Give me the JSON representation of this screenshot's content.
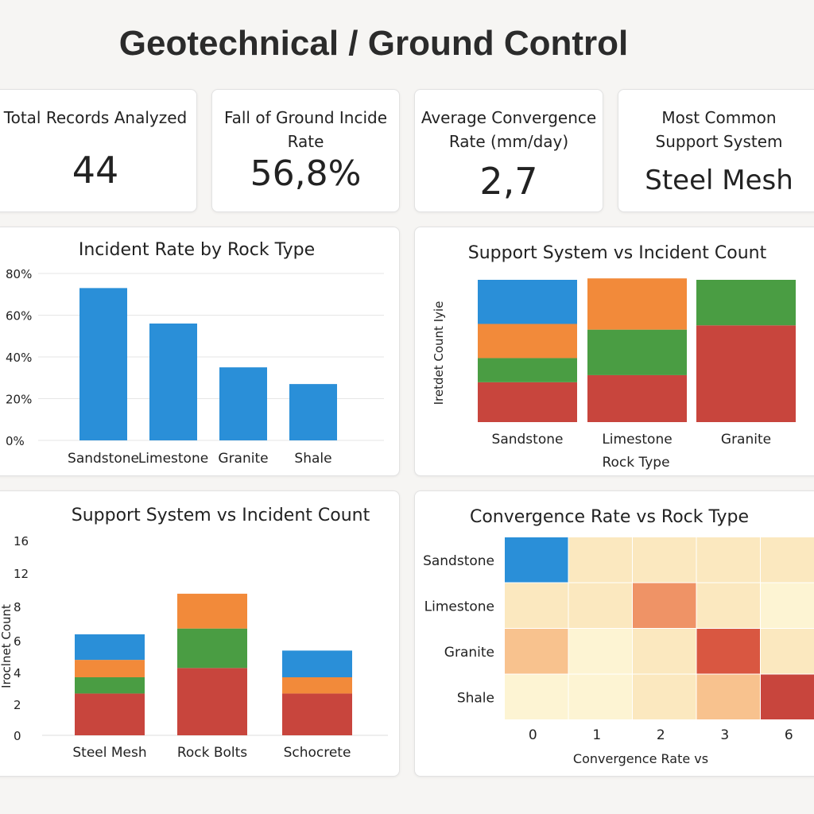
{
  "page": {
    "title": "Geotechnical / Ground Control"
  },
  "kpis": [
    {
      "label": "Total Records Analyzed",
      "value": "44"
    },
    {
      "label": "Fall of Ground Incide Rate",
      "value": "56,8%"
    },
    {
      "label": "Average Convergence Rate (mm/day)",
      "value": "2,7"
    },
    {
      "label": "Most Common Support System",
      "value": "Steel Mesh"
    }
  ],
  "colors": {
    "blue": "#2a8fd8",
    "orange": "#f28a3a",
    "green": "#4a9d43",
    "red": "#c8453d"
  },
  "chart_data": [
    {
      "type": "bar",
      "title": "Incident Rate by Rock Type",
      "categories": [
        "Sandstone",
        "Limestone",
        "Granite",
        "Shale"
      ],
      "values": [
        73,
        56,
        35,
        27
      ],
      "ylim": [
        0,
        80
      ],
      "yticks": [
        "0%",
        "20%",
        "40%",
        "60%",
        "80%"
      ],
      "grid": true
    },
    {
      "type": "bar",
      "stacked": true,
      "title": "Support System vs Incident Count",
      "xlabel": "Rock Type",
      "ylabel": "Iretdet Count Iyie",
      "categories": [
        "Sandstone",
        "Limestone",
        "Granite"
      ],
      "series": [
        {
          "color": "#c8453d",
          "values": [
            28,
            33,
            68
          ]
        },
        {
          "color": "#4a9d43",
          "values": [
            17,
            32,
            32
          ]
        },
        {
          "color": "#f28a3a",
          "values": [
            24,
            36,
            0
          ]
        },
        {
          "color": "#2a8fd8",
          "values": [
            31,
            0,
            0
          ]
        }
      ],
      "ylim": [
        0,
        100
      ]
    },
    {
      "type": "bar",
      "stacked": true,
      "title": "Support System vs Incident Count",
      "ylabel": "Iroclnet Count",
      "categories": [
        "Steel Mesh",
        "Rock Bolts",
        "Schocrete"
      ],
      "yticks": [
        "0",
        "2",
        "4",
        "6",
        "8",
        "12",
        "16"
      ],
      "series": [
        {
          "color": "#c8453d",
          "values": [
            3.6,
            5.8,
            3.6
          ]
        },
        {
          "color": "#4a9d43",
          "values": [
            1.4,
            3.4,
            0
          ]
        },
        {
          "color": "#f28a3a",
          "values": [
            1.5,
            3.0,
            1.4
          ]
        },
        {
          "color": "#2a8fd8",
          "values": [
            2.2,
            0,
            2.3
          ]
        }
      ]
    },
    {
      "type": "heatmap",
      "title": "Convergence Rate vs Rock Type",
      "xlabel": "Convergence Rate vs",
      "rows": [
        "Sandstone",
        "Limestone",
        "Granite",
        "Shale"
      ],
      "cols": [
        "0",
        "1",
        "2",
        "3",
        "6"
      ],
      "cells": [
        [
          "#2a8fd8",
          "#fbe8bf",
          "#fbe8bf",
          "#fbe8bf",
          "#fbe8bf"
        ],
        [
          "#fbe8bf",
          "#fbe8bf",
          "#ef9366",
          "#fbe8bf",
          "#fdf4d3"
        ],
        [
          "#f8c28e",
          "#fdf4d3",
          "#fbe8bf",
          "#d95741",
          "#fbe8bf"
        ],
        [
          "#fdf4d3",
          "#fdf4d3",
          "#fbe8bf",
          "#f8c28e",
          "#c8453d"
        ]
      ]
    }
  ]
}
